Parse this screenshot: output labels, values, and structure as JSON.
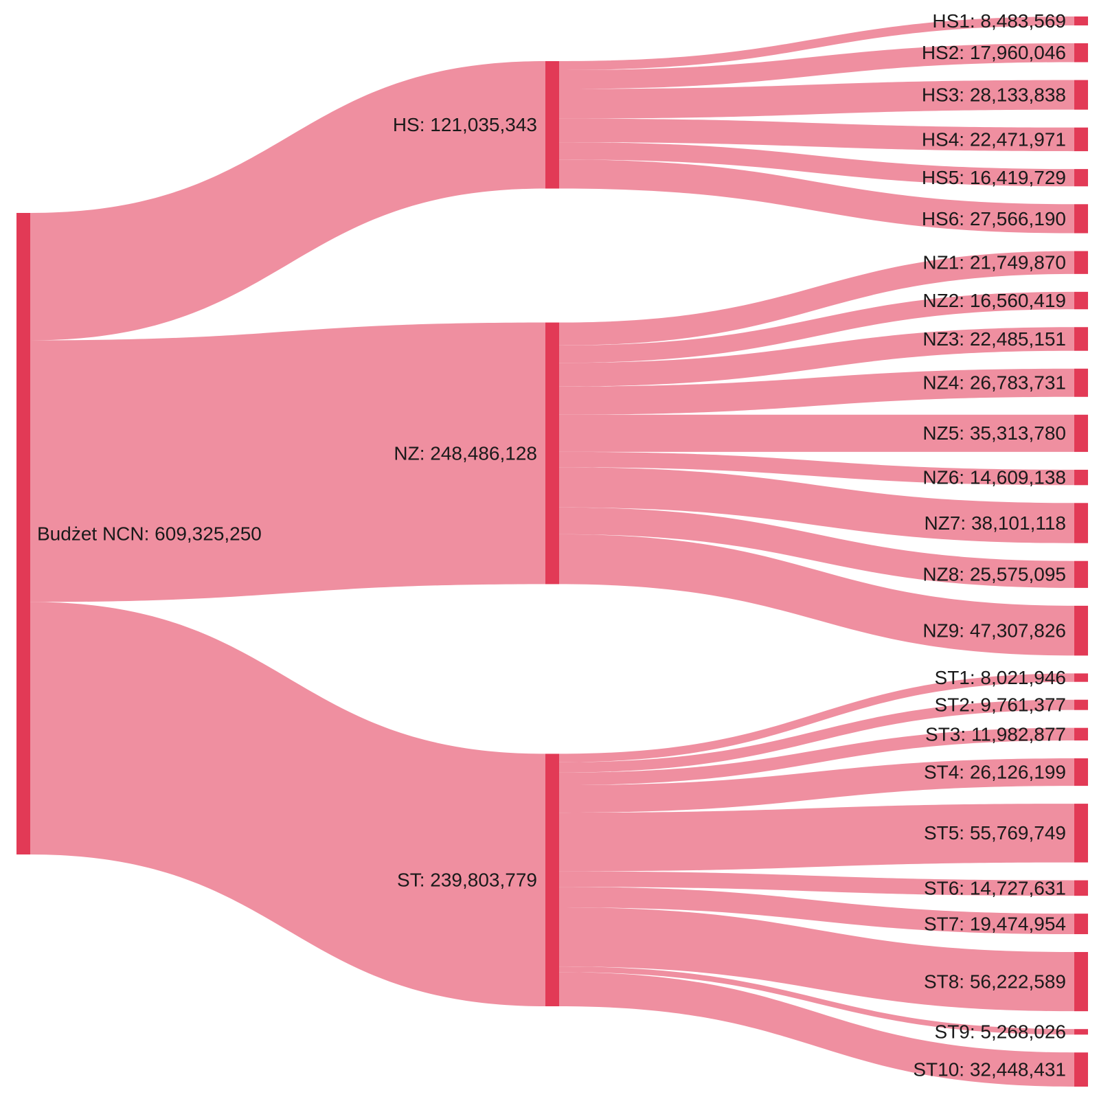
{
  "colors": {
    "node": "#e23a56",
    "link": "#ef8fa0"
  },
  "chart_data": {
    "type": "sankey",
    "unit_separator": ": ",
    "nodes": [
      {
        "id": "root",
        "name": "Budżet NCN",
        "value": 609325250,
        "label": "609,325,250",
        "level": 0
      },
      {
        "id": "HS",
        "name": "HS",
        "value": 121035343,
        "label": "121,035,343",
        "level": 1
      },
      {
        "id": "NZ",
        "name": "NZ",
        "value": 248486128,
        "label": "248,486,128",
        "level": 1
      },
      {
        "id": "ST",
        "name": "ST",
        "value": 239803779,
        "label": "239,803,779",
        "level": 1
      },
      {
        "id": "HS1",
        "name": "HS1",
        "value": 8483569,
        "label": "8,483,569",
        "level": 2
      },
      {
        "id": "HS2",
        "name": "HS2",
        "value": 17960046,
        "label": "17,960,046",
        "level": 2
      },
      {
        "id": "HS3",
        "name": "HS3",
        "value": 28133838,
        "label": "28,133,838",
        "level": 2
      },
      {
        "id": "HS4",
        "name": "HS4",
        "value": 22471971,
        "label": "22,471,971",
        "level": 2
      },
      {
        "id": "HS5",
        "name": "HS5",
        "value": 16419729,
        "label": "16,419,729",
        "level": 2
      },
      {
        "id": "HS6",
        "name": "HS6",
        "value": 27566190,
        "label": "27,566,190",
        "level": 2
      },
      {
        "id": "NZ1",
        "name": "NZ1",
        "value": 21749870,
        "label": "21,749,870",
        "level": 2
      },
      {
        "id": "NZ2",
        "name": "NZ2",
        "value": 16560419,
        "label": "16,560,419",
        "level": 2
      },
      {
        "id": "NZ3",
        "name": "NZ3",
        "value": 22485151,
        "label": "22,485,151",
        "level": 2
      },
      {
        "id": "NZ4",
        "name": "NZ4",
        "value": 26783731,
        "label": "26,783,731",
        "level": 2
      },
      {
        "id": "NZ5",
        "name": "NZ5",
        "value": 35313780,
        "label": "35,313,780",
        "level": 2
      },
      {
        "id": "NZ6",
        "name": "NZ6",
        "value": 14609138,
        "label": "14,609,138",
        "level": 2
      },
      {
        "id": "NZ7",
        "name": "NZ7",
        "value": 38101118,
        "label": "38,101,118",
        "level": 2
      },
      {
        "id": "NZ8",
        "name": "NZ8",
        "value": 25575095,
        "label": "25,575,095",
        "level": 2
      },
      {
        "id": "NZ9",
        "name": "NZ9",
        "value": 47307826,
        "label": "47,307,826",
        "level": 2
      },
      {
        "id": "ST1",
        "name": "ST1",
        "value": 8021946,
        "label": "8,021,946",
        "level": 2
      },
      {
        "id": "ST2",
        "name": "ST2",
        "value": 9761377,
        "label": "9,761,377",
        "level": 2
      },
      {
        "id": "ST3",
        "name": "ST3",
        "value": 11982877,
        "label": "11,982,877",
        "level": 2
      },
      {
        "id": "ST4",
        "name": "ST4",
        "value": 26126199,
        "label": "26,126,199",
        "level": 2
      },
      {
        "id": "ST5",
        "name": "ST5",
        "value": 55769749,
        "label": "55,769,749",
        "level": 2
      },
      {
        "id": "ST6",
        "name": "ST6",
        "value": 14727631,
        "label": "14,727,631",
        "level": 2
      },
      {
        "id": "ST7",
        "name": "ST7",
        "value": 19474954,
        "label": "19,474,954",
        "level": 2
      },
      {
        "id": "ST8",
        "name": "ST8",
        "value": 56222589,
        "label": "56,222,589",
        "level": 2
      },
      {
        "id": "ST9",
        "name": "ST9",
        "value": 5268026,
        "label": "5,268,026",
        "level": 2
      },
      {
        "id": "ST10",
        "name": "ST10",
        "value": 32448431,
        "label": "32,448,431",
        "level": 2
      }
    ],
    "links": [
      {
        "source": "root",
        "target": "HS",
        "value": 121035343
      },
      {
        "source": "root",
        "target": "NZ",
        "value": 248486128
      },
      {
        "source": "root",
        "target": "ST",
        "value": 239803779
      },
      {
        "source": "HS",
        "target": "HS1",
        "value": 8483569
      },
      {
        "source": "HS",
        "target": "HS2",
        "value": 17960046
      },
      {
        "source": "HS",
        "target": "HS3",
        "value": 28133838
      },
      {
        "source": "HS",
        "target": "HS4",
        "value": 22471971
      },
      {
        "source": "HS",
        "target": "HS5",
        "value": 16419729
      },
      {
        "source": "HS",
        "target": "HS6",
        "value": 27566190
      },
      {
        "source": "NZ",
        "target": "NZ1",
        "value": 21749870
      },
      {
        "source": "NZ",
        "target": "NZ2",
        "value": 16560419
      },
      {
        "source": "NZ",
        "target": "NZ3",
        "value": 22485151
      },
      {
        "source": "NZ",
        "target": "NZ4",
        "value": 26783731
      },
      {
        "source": "NZ",
        "target": "NZ5",
        "value": 35313780
      },
      {
        "source": "NZ",
        "target": "NZ6",
        "value": 14609138
      },
      {
        "source": "NZ",
        "target": "NZ7",
        "value": 38101118
      },
      {
        "source": "NZ",
        "target": "NZ8",
        "value": 25575095
      },
      {
        "source": "NZ",
        "target": "NZ9",
        "value": 47307826
      },
      {
        "source": "ST",
        "target": "ST1",
        "value": 8021946
      },
      {
        "source": "ST",
        "target": "ST2",
        "value": 9761377
      },
      {
        "source": "ST",
        "target": "ST3",
        "value": 11982877
      },
      {
        "source": "ST",
        "target": "ST4",
        "value": 26126199
      },
      {
        "source": "ST",
        "target": "ST5",
        "value": 55769749
      },
      {
        "source": "ST",
        "target": "ST6",
        "value": 14727631
      },
      {
        "source": "ST",
        "target": "ST7",
        "value": 19474954
      },
      {
        "source": "ST",
        "target": "ST8",
        "value": 56222589
      },
      {
        "source": "ST",
        "target": "ST9",
        "value": 5268026
      },
      {
        "source": "ST",
        "target": "ST10",
        "value": 32448431
      }
    ]
  }
}
